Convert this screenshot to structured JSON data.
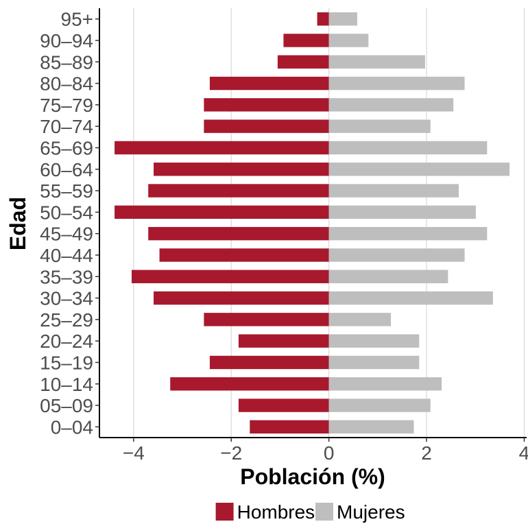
{
  "chart_data": {
    "type": "bar",
    "orientation": "horizontal",
    "title": "",
    "xlabel": "Población (%)",
    "ylabel": "Edad",
    "xlim": [
      -4.7,
      4.05
    ],
    "xticks": [
      -4,
      -2,
      0,
      2,
      4
    ],
    "xtick_labels": [
      "−4",
      "−2",
      "0",
      "2",
      "4"
    ],
    "grid": "vertical-major",
    "legend_position": "bottom",
    "categories": [
      "0–04",
      "05–09",
      "10–14",
      "15–19",
      "20–24",
      "25–29",
      "30–34",
      "35–39",
      "40–44",
      "45–49",
      "50–54",
      "55–59",
      "60–64",
      "65–69",
      "70–74",
      "75–79",
      "80–84",
      "85–89",
      "90–94",
      "95+"
    ],
    "series": [
      {
        "name": "Hombres",
        "color": "#a8192e",
        "values": [
          -1.62,
          -1.85,
          -3.25,
          -2.44,
          -1.85,
          -2.56,
          -3.59,
          -4.04,
          -3.47,
          -3.7,
          -4.39,
          -3.7,
          -3.59,
          -4.39,
          -2.56,
          -2.56,
          -2.44,
          -1.05,
          -0.93,
          -0.24
        ]
      },
      {
        "name": "Mujeres",
        "color": "#bebebe",
        "values": [
          1.74,
          2.08,
          2.31,
          1.85,
          1.85,
          1.27,
          3.36,
          2.44,
          2.78,
          3.24,
          3.01,
          2.66,
          3.7,
          3.24,
          2.08,
          2.55,
          2.78,
          1.97,
          0.81,
          0.58
        ]
      }
    ]
  }
}
